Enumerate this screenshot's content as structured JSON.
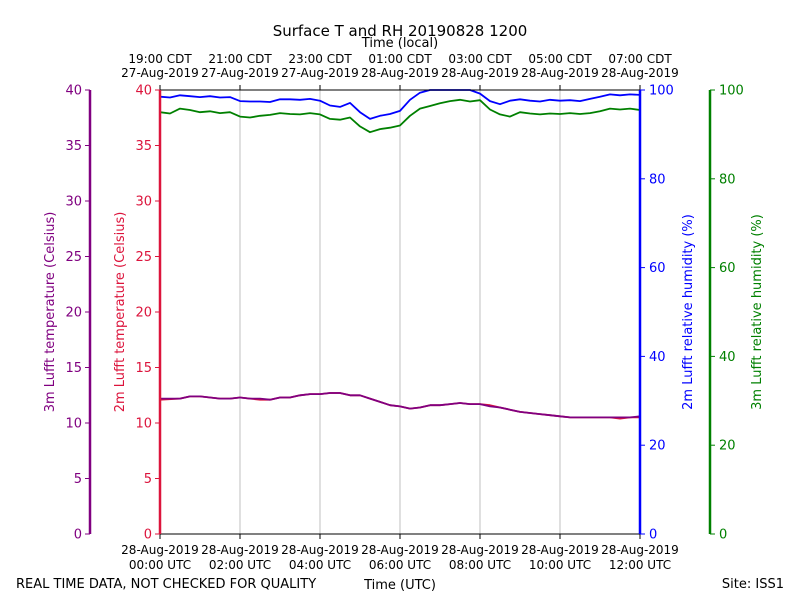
{
  "chart_data": {
    "type": "line",
    "title": "Surface T and RH 20190828 1200",
    "top_axis_label": "Time (local)",
    "xlabel": "Time (UTC)",
    "x_ticks_utc": [
      {
        "hour": 0,
        "date": "28-Aug-2019",
        "time": "00:00 UTC"
      },
      {
        "hour": 2,
        "date": "28-Aug-2019",
        "time": "02:00 UTC"
      },
      {
        "hour": 4,
        "date": "28-Aug-2019",
        "time": "04:00 UTC"
      },
      {
        "hour": 6,
        "date": "28-Aug-2019",
        "time": "06:00 UTC"
      },
      {
        "hour": 8,
        "date": "28-Aug-2019",
        "time": "08:00 UTC"
      },
      {
        "hour": 10,
        "date": "28-Aug-2019",
        "time": "10:00 UTC"
      },
      {
        "hour": 12,
        "date": "28-Aug-2019",
        "time": "12:00 UTC"
      }
    ],
    "x_ticks_local": [
      {
        "hour": 0,
        "time": "19:00 CDT",
        "date": "27-Aug-2019"
      },
      {
        "hour": 2,
        "time": "21:00 CDT",
        "date": "27-Aug-2019"
      },
      {
        "hour": 4,
        "time": "23:00 CDT",
        "date": "27-Aug-2019"
      },
      {
        "hour": 6,
        "time": "01:00 CDT",
        "date": "28-Aug-2019"
      },
      {
        "hour": 8,
        "time": "03:00 CDT",
        "date": "28-Aug-2019"
      },
      {
        "hour": 10,
        "time": "05:00 CDT",
        "date": "28-Aug-2019"
      },
      {
        "hour": 12,
        "time": "07:00 CDT",
        "date": "28-Aug-2019"
      }
    ],
    "xlim": [
      0,
      12
    ],
    "axes": {
      "temp3m": {
        "label": "3m Lufft temperature (Celsius)",
        "color": "#800080",
        "ylim": [
          0,
          40
        ],
        "ticks": [
          0,
          5,
          10,
          15,
          20,
          25,
          30,
          35,
          40
        ]
      },
      "temp2m": {
        "label": "2m Lufft temperature (Celsius)",
        "color": "#dc143c",
        "ylim": [
          0,
          40
        ],
        "ticks": [
          0,
          5,
          10,
          15,
          20,
          25,
          30,
          35,
          40
        ]
      },
      "rh2m": {
        "label": "2m Lufft relative humidity (%)",
        "color": "#0000ff",
        "ylim": [
          0,
          100
        ],
        "ticks": [
          0,
          20,
          40,
          60,
          80,
          100
        ]
      },
      "rh3m": {
        "label": "3m Lufft relative humidity (%)",
        "color": "#008000",
        "ylim": [
          0,
          100
        ],
        "ticks": [
          0,
          20,
          40,
          60,
          80,
          100
        ]
      }
    },
    "series": [
      {
        "name": "2m Lufft temperature",
        "axis": "temp2m",
        "color": "#dc143c",
        "x": [
          0,
          0.5,
          0.75,
          1.0,
          1.25,
          1.5,
          1.75,
          2.0,
          2.25,
          2.5,
          2.75,
          3.0,
          3.25,
          3.5,
          3.75,
          4.0,
          4.25,
          4.5,
          4.75,
          5.0,
          5.25,
          5.5,
          5.75,
          6.0,
          6.25,
          6.5,
          6.75,
          7.0,
          7.25,
          7.5,
          7.75,
          8.0,
          8.25,
          8.5,
          8.75,
          9.0,
          9.25,
          9.5,
          9.75,
          10.0,
          10.25,
          10.5,
          10.75,
          11.0,
          11.25,
          11.5,
          11.75,
          12.0
        ],
        "y": [
          12.1,
          12.2,
          12.4,
          12.4,
          12.3,
          12.2,
          12.2,
          12.3,
          12.2,
          12.1,
          12.1,
          12.3,
          12.3,
          12.5,
          12.6,
          12.6,
          12.7,
          12.7,
          12.5,
          12.5,
          12.2,
          11.9,
          11.6,
          11.5,
          11.3,
          11.4,
          11.6,
          11.6,
          11.7,
          11.8,
          11.7,
          11.7,
          11.6,
          11.4,
          11.2,
          11.0,
          10.9,
          10.8,
          10.7,
          10.6,
          10.5,
          10.5,
          10.5,
          10.5,
          10.5,
          10.4,
          10.5,
          10.5
        ]
      },
      {
        "name": "3m Lufft temperature",
        "axis": "temp3m",
        "color": "#800080",
        "x": [
          0,
          0.5,
          0.75,
          1.0,
          1.25,
          1.5,
          1.75,
          2.0,
          2.25,
          2.5,
          2.75,
          3.0,
          3.25,
          3.5,
          3.75,
          4.0,
          4.25,
          4.5,
          4.75,
          5.0,
          5.25,
          5.5,
          5.75,
          6.0,
          6.25,
          6.5,
          6.75,
          7.0,
          7.25,
          7.5,
          7.75,
          8.0,
          8.25,
          8.5,
          8.75,
          9.0,
          9.25,
          9.5,
          9.75,
          10.0,
          10.25,
          10.5,
          10.75,
          11.0,
          11.25,
          11.5,
          11.75,
          12.0
        ],
        "y": [
          12.2,
          12.2,
          12.4,
          12.4,
          12.3,
          12.2,
          12.2,
          12.3,
          12.2,
          12.2,
          12.1,
          12.3,
          12.3,
          12.5,
          12.6,
          12.6,
          12.7,
          12.7,
          12.5,
          12.5,
          12.2,
          11.9,
          11.6,
          11.5,
          11.3,
          11.4,
          11.6,
          11.6,
          11.7,
          11.8,
          11.7,
          11.7,
          11.5,
          11.4,
          11.2,
          11.0,
          10.9,
          10.8,
          10.7,
          10.6,
          10.5,
          10.5,
          10.5,
          10.5,
          10.5,
          10.5,
          10.5,
          10.6
        ]
      },
      {
        "name": "2m Lufft relative humidity",
        "axis": "rh2m",
        "color": "#0000ff",
        "x": [
          0,
          0.25,
          0.5,
          0.75,
          1.0,
          1.25,
          1.5,
          1.75,
          2.0,
          2.25,
          2.5,
          2.75,
          3.0,
          3.25,
          3.5,
          3.75,
          4.0,
          4.25,
          4.5,
          4.75,
          5.0,
          5.25,
          5.5,
          5.75,
          6.0,
          6.25,
          6.5,
          6.75,
          7.0,
          7.25,
          7.5,
          7.75,
          8.0,
          8.25,
          8.5,
          8.75,
          9.0,
          9.25,
          9.5,
          9.75,
          10.0,
          10.25,
          10.5,
          10.75,
          11.0,
          11.25,
          11.5,
          11.75,
          12.0
        ],
        "y": [
          98.5,
          98.3,
          98.8,
          98.6,
          98.4,
          98.6,
          98.3,
          98.4,
          97.5,
          97.4,
          97.4,
          97.3,
          97.9,
          97.9,
          97.8,
          98.0,
          97.6,
          96.5,
          96.2,
          97.1,
          95.0,
          93.5,
          94.2,
          94.6,
          95.3,
          97.8,
          99.4,
          100.0,
          100.0,
          100.0,
          100.0,
          100.0,
          99.2,
          97.5,
          96.8,
          97.6,
          97.9,
          97.6,
          97.4,
          97.8,
          97.6,
          97.7,
          97.5,
          98.0,
          98.5,
          99.0,
          98.8,
          99.0,
          98.9
        ]
      },
      {
        "name": "3m Lufft relative humidity",
        "axis": "rh3m",
        "color": "#008000",
        "x": [
          0,
          0.25,
          0.5,
          0.75,
          1.0,
          1.25,
          1.5,
          1.75,
          2.0,
          2.25,
          2.5,
          2.75,
          3.0,
          3.25,
          3.5,
          3.75,
          4.0,
          4.25,
          4.5,
          4.75,
          5.0,
          5.25,
          5.5,
          5.75,
          6.0,
          6.25,
          6.5,
          6.75,
          7.0,
          7.25,
          7.5,
          7.75,
          8.0,
          8.25,
          8.5,
          8.75,
          9.0,
          9.25,
          9.5,
          9.75,
          10.0,
          10.25,
          10.5,
          10.75,
          11.0,
          11.25,
          11.5,
          11.75,
          12.0
        ],
        "y": [
          95.0,
          94.7,
          95.8,
          95.5,
          95.0,
          95.2,
          94.8,
          95.0,
          94.0,
          93.8,
          94.2,
          94.4,
          94.8,
          94.6,
          94.5,
          94.8,
          94.5,
          93.5,
          93.3,
          93.8,
          91.8,
          90.5,
          91.2,
          91.5,
          92.0,
          94.2,
          95.8,
          96.4,
          97.0,
          97.5,
          97.8,
          97.4,
          97.7,
          95.6,
          94.5,
          94.0,
          95.0,
          94.7,
          94.5,
          94.7,
          94.6,
          94.8,
          94.6,
          94.8,
          95.2,
          95.8,
          95.6,
          95.8,
          95.5
        ]
      }
    ]
  },
  "footer": {
    "left_note": "REAL TIME DATA, NOT CHECKED FOR QUALITY",
    "site": "Site: ISS1"
  }
}
